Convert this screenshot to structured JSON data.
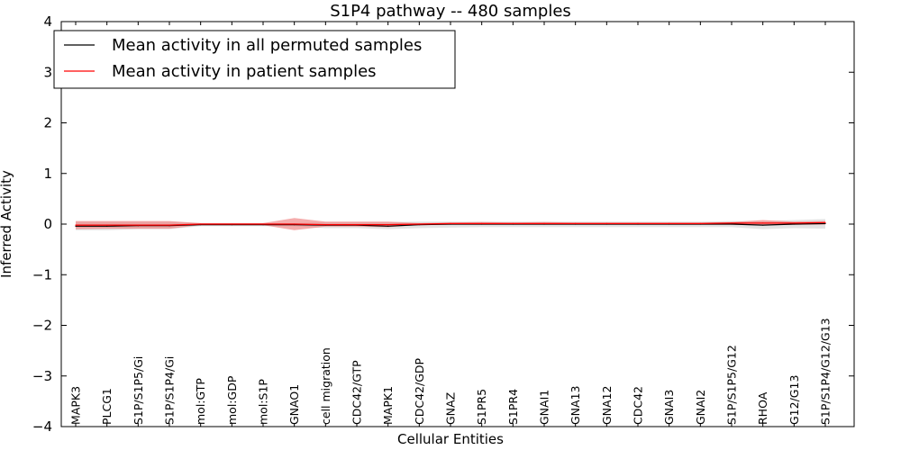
{
  "chart_data": {
    "type": "line",
    "title": "S1P4 pathway -- 480 samples",
    "xlabel": "Cellular Entities",
    "ylabel": "Inferred Activity",
    "ylim": [
      -4,
      4
    ],
    "yticks": [
      4,
      3,
      2,
      1,
      0,
      -1,
      -2,
      -3,
      -4
    ],
    "ytick_labels": [
      "4",
      "3",
      "2",
      "1",
      "0",
      "−1",
      "−2",
      "−3",
      "−4"
    ],
    "grid": false,
    "legend_position": "top-left",
    "categories": [
      "MAPK3",
      "PLCG1",
      "S1P/S1P5/Gi",
      "S1P/S1P4/Gi",
      "mol:GTP",
      "mol:GDP",
      "mol:S1P",
      "GNAO1",
      "cell migration",
      "CDC42/GTP",
      "MAPK1",
      "CDC42/GDP",
      "GNAZ",
      "S1PR5",
      "S1PR4",
      "GNAI1",
      "GNA13",
      "GNA12",
      "CDC42",
      "GNAI3",
      "GNAI2",
      "S1P/S1P5/G12",
      "RHOA",
      "G12/G13",
      "S1P/S1P4/G12/G13"
    ],
    "series": [
      {
        "name": "Mean activity in all permuted samples",
        "color": "#000000",
        "band_color": "#d9d9d9",
        "values": [
          -0.04,
          -0.04,
          -0.03,
          -0.03,
          -0.01,
          -0.01,
          -0.01,
          -0.01,
          -0.02,
          -0.02,
          -0.04,
          -0.01,
          0.0,
          0.0,
          0.0,
          0.0,
          0.0,
          0.0,
          0.0,
          0.0,
          0.0,
          0.0,
          -0.02,
          0.0,
          0.01
        ],
        "band_low": [
          -0.12,
          -0.12,
          -0.1,
          -0.1,
          -0.04,
          -0.04,
          -0.04,
          -0.04,
          -0.08,
          -0.08,
          -0.1,
          -0.08,
          -0.07,
          -0.06,
          -0.06,
          -0.06,
          -0.06,
          -0.06,
          -0.06,
          -0.06,
          -0.06,
          -0.06,
          -0.1,
          -0.08,
          -0.09
        ],
        "band_high": [
          0.05,
          0.05,
          0.05,
          0.05,
          0.02,
          0.02,
          0.02,
          0.02,
          0.04,
          0.04,
          0.04,
          0.05,
          0.05,
          0.05,
          0.05,
          0.05,
          0.05,
          0.05,
          0.05,
          0.05,
          0.05,
          0.06,
          0.06,
          0.08,
          0.1
        ]
      },
      {
        "name": "Mean activity in patient samples",
        "color": "#ff0000",
        "band_color": "#f08080",
        "values": [
          -0.02,
          -0.02,
          -0.02,
          -0.02,
          0.0,
          0.0,
          0.0,
          0.0,
          -0.01,
          -0.01,
          -0.01,
          0.0,
          0.01,
          0.01,
          0.01,
          0.01,
          0.01,
          0.01,
          0.01,
          0.01,
          0.01,
          0.02,
          0.02,
          0.02,
          0.03
        ],
        "band_low": [
          -0.1,
          -0.09,
          -0.09,
          -0.09,
          -0.02,
          -0.02,
          -0.02,
          -0.12,
          -0.05,
          -0.05,
          -0.06,
          -0.02,
          -0.01,
          -0.01,
          -0.01,
          -0.01,
          -0.01,
          -0.01,
          -0.01,
          -0.01,
          -0.01,
          -0.01,
          -0.02,
          -0.01,
          -0.01
        ],
        "band_high": [
          0.06,
          0.06,
          0.06,
          0.06,
          0.02,
          0.02,
          0.02,
          0.12,
          0.05,
          0.05,
          0.05,
          0.02,
          0.03,
          0.04,
          0.03,
          0.04,
          0.03,
          0.03,
          0.03,
          0.03,
          0.03,
          0.04,
          0.08,
          0.05,
          0.06
        ]
      }
    ]
  }
}
